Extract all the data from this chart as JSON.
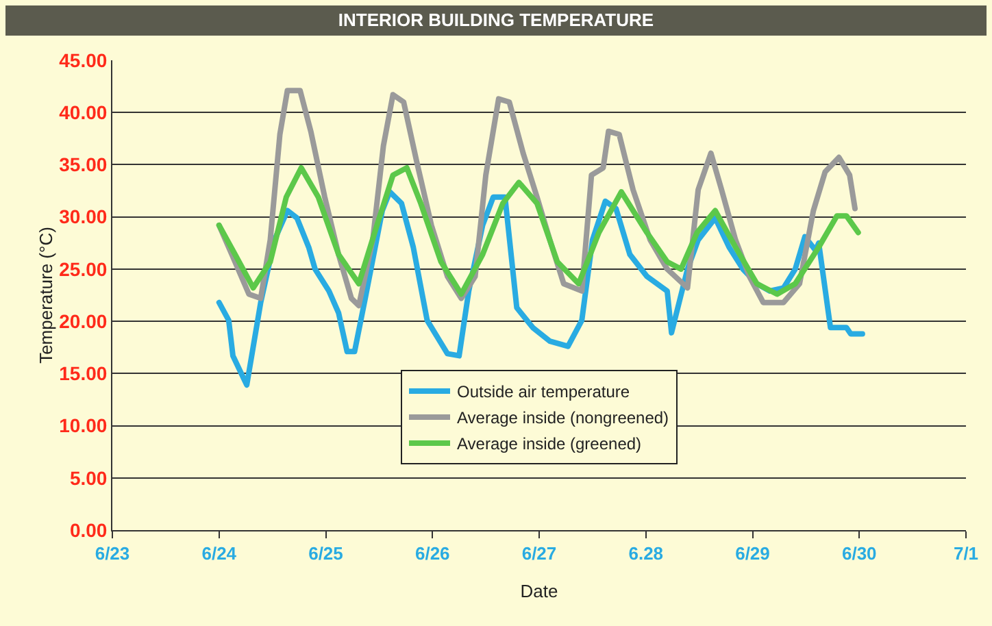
{
  "chart_data": {
    "type": "line",
    "title": "INTERIOR BUILDING TEMPERATURE",
    "xlabel": "Date",
    "ylabel": "Temperature (°C)",
    "xlim": [
      "--06-23",
      "--07-01"
    ],
    "xticks": [
      {
        "value": "--06-23",
        "label": "6/23"
      },
      {
        "value": "--06-24",
        "label": "6/24"
      },
      {
        "value": "--06-25",
        "label": "6/25"
      },
      {
        "value": "--06-26",
        "label": "6/26"
      },
      {
        "value": "--06-27",
        "label": "6/27"
      },
      {
        "value": "--06-28",
        "label": "6.28"
      },
      {
        "value": "--06-29",
        "label": "6/29"
      },
      {
        "value": "--06-30",
        "label": "6/30"
      },
      {
        "value": "--07-01",
        "label": "7/1"
      }
    ],
    "ylim": [
      0,
      45
    ],
    "yticks": [
      {
        "value": 0,
        "label": "0.00"
      },
      {
        "value": 5,
        "label": "5.00"
      },
      {
        "value": 10,
        "label": "10.00"
      },
      {
        "value": 15,
        "label": "15.00"
      },
      {
        "value": 20,
        "label": "20.00"
      },
      {
        "value": 25,
        "label": "25.00"
      },
      {
        "value": 30,
        "label": "30.00"
      },
      {
        "value": 35,
        "label": "35.00"
      },
      {
        "value": 40,
        "label": "40.00"
      },
      {
        "value": 45,
        "label": "45.00"
      }
    ],
    "grid": "y",
    "legend": "bottom",
    "marker": "none",
    "line_style": "solid",
    "series": [
      {
        "name": "Outside air temperature",
        "color": "#29abe2",
        "x": [
          "--06-24T00:00",
          "--06-24T02:10",
          "--06-24T03:07",
          "--06-24T06:14",
          "--06-24T09:22",
          "--06-24T12:29",
          "--06-24T15:22",
          "--06-24T17:31",
          "--06-24T20:10",
          "--06-24T21:36",
          "--06-25T00:43",
          "--06-25T02:53",
          "--06-25T04:48",
          "--06-25T06:29",
          "--06-25T08:53",
          "--06-25T12:43",
          "--06-25T14:24",
          "--06-25T17:02",
          "--06-25T19:41",
          "--06-25T22:48",
          "--06-26T03:22",
          "--06-26T06:00",
          "--06-26T08:10",
          "--06-26T11:17",
          "--06-26T13:41",
          "--06-26T16:19",
          "--06-26T18:58",
          "--06-26T22:34",
          "--06-27T02:24",
          "--06-27T06:29",
          "--06-27T09:36",
          "--06-27T12:00",
          "--06-27T14:53",
          "--06-27T17:17",
          "--06-27T20:24",
          "--06-28T00:14",
          "--06-28T04:48",
          "--06-28T05:46",
          "--06-28T09:22",
          "--06-28T11:46",
          "--06-28T15:36",
          "--06-28T18:43",
          "--06-28T21:50",
          "--06-29T00:58",
          "--06-29T03:50",
          "--06-29T06:58",
          "--06-29T09:36",
          "--06-29T11:46",
          "--06-29T14:10",
          "--06-29T14:53",
          "--06-29T17:31",
          "--06-29T21:07",
          "--06-29T22:05",
          "--06-30T00:43"
        ],
        "values": [
          21.8,
          20.1,
          16.7,
          13.9,
          21.8,
          27.8,
          30.6,
          29.9,
          27.1,
          25,
          22.9,
          20.8,
          17.1,
          17.1,
          22.2,
          30.6,
          32.4,
          31.3,
          27.1,
          20.1,
          16.9,
          16.7,
          22.9,
          29.2,
          31.9,
          31.9,
          21.3,
          19.4,
          18.1,
          17.6,
          20.1,
          27.8,
          31.5,
          30.8,
          26.4,
          24.3,
          22.9,
          18.9,
          25,
          27.8,
          29.9,
          27.1,
          25,
          23.6,
          22.9,
          23.2,
          25,
          28.1,
          26.8,
          27.5,
          19.4,
          19.4,
          18.8,
          18.8
        ]
      },
      {
        "name": "Average inside (nongreened)",
        "color": "#9a9a9a",
        "x": [
          "--06-24T00:00",
          "--06-24T02:53",
          "--06-24T06:43",
          "--06-24T09:22",
          "--06-24T11:31",
          "--06-24T13:41",
          "--06-24T15:22",
          "--06-24T18:14",
          "--06-24T20:38",
          "--06-24T23:46",
          "--06-25T02:53",
          "--06-25T05:46",
          "--06-25T07:26",
          "--06-25T10:34",
          "--06-25T12:58",
          "--06-25T15:07",
          "--06-25T17:31",
          "--06-25T20:24",
          "--06-25T23:46",
          "--06-26T03:22",
          "--06-26T06:29",
          "--06-26T09:36",
          "--06-26T12:00",
          "--06-26T14:53",
          "--06-26T17:17",
          "--06-26T20:24",
          "--06-26T23:31",
          "--06-27T02:24",
          "--06-27T05:31",
          "--06-27T09:36",
          "--06-27T11:46",
          "--06-27T14:24",
          "--06-27T15:36",
          "--06-27T18:00",
          "--06-27T21:07",
          "--06-28T00:58",
          "--06-28T04:48",
          "--06-28T09:22",
          "--06-28T11:46",
          "--06-28T14:38",
          "--06-28T17:02",
          "--06-28T20:10",
          "--06-28T23:17",
          "--06-29T02:24",
          "--06-29T06:58",
          "--06-29T10:34",
          "--06-29T13:41",
          "--06-29T16:19",
          "--06-29T19:26",
          "--06-29T21:50",
          "--06-29T23:02"
        ],
        "values": [
          29.2,
          26.4,
          22.6,
          22.2,
          27.8,
          37.9,
          42.1,
          42.1,
          38.2,
          31.9,
          26.4,
          22.2,
          21.5,
          27.8,
          36.8,
          41.7,
          41,
          35.4,
          29.2,
          24.3,
          22.2,
          24.3,
          34,
          41.3,
          41,
          36.1,
          31.9,
          27.8,
          23.6,
          22.9,
          34,
          34.7,
          38.2,
          37.9,
          32.6,
          27.8,
          25,
          23.2,
          32.6,
          36.1,
          32.6,
          27.8,
          24.3,
          21.8,
          21.8,
          23.6,
          30.6,
          34.3,
          35.7,
          34,
          30.8
        ]
      },
      {
        "name": "Average inside (greened)",
        "color": "#5cc84a",
        "x": [
          "--06-24T00:00",
          "--06-24T03:36",
          "--06-24T07:41",
          "--06-24T11:31",
          "--06-24T15:07",
          "--06-24T18:29",
          "--06-24T22:19",
          "--06-25T02:53",
          "--06-25T07:26",
          "--06-25T11:31",
          "--06-25T15:07",
          "--06-25T18:14",
          "--06-25T21:22",
          "--06-26T01:55",
          "--06-26T06:29",
          "--06-26T11:17",
          "--06-26T15:50",
          "--06-26T19:26",
          "--06-26T23:31",
          "--06-27T04:05",
          "--06-27T08:53",
          "--06-27T13:26",
          "--06-27T18:29",
          "--06-28T00:14",
          "--06-28T04:48",
          "--06-28T07:55",
          "--06-28T11:31",
          "--06-28T15:36",
          "--06-28T20:10",
          "--06-29T00:58",
          "--06-29T05:31",
          "--06-29T09:36",
          "--06-29T14:53",
          "--06-29T18:58",
          "--06-29T21:07",
          "--06-29T23:46"
        ],
        "values": [
          29.2,
          26.4,
          23.2,
          25.7,
          31.9,
          34.7,
          31.9,
          26.4,
          23.6,
          29.2,
          34,
          34.7,
          31.3,
          25.7,
          22.6,
          26.4,
          31.3,
          33.3,
          31.3,
          25.7,
          23.6,
          28.5,
          32.4,
          28.5,
          25.7,
          25,
          28.5,
          30.6,
          27.1,
          23.6,
          22.6,
          23.6,
          27.1,
          30.1,
          30.1,
          28.5
        ]
      }
    ]
  }
}
